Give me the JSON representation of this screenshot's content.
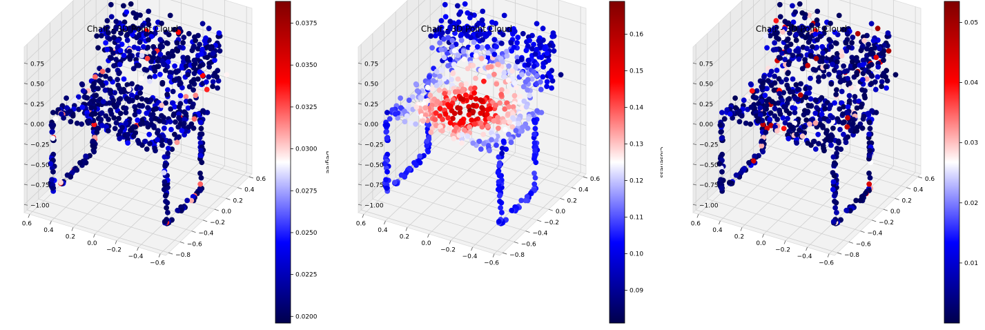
{
  "chart_data": [
    {
      "type": "scatter",
      "projection": "3d",
      "title": "Chair - 3D Point Cloud",
      "colormap": "seismic",
      "colorbar": {
        "label": "Degree",
        "range": [
          0.0196,
          0.0388
        ],
        "ticks": [
          "0.0200",
          "0.0225",
          "0.0250",
          "0.0275",
          "0.0300",
          "0.0325",
          "0.0350",
          "0.0375"
        ],
        "tick_values": [
          0.02,
          0.0225,
          0.025,
          0.0275,
          0.03,
          0.0325,
          0.035,
          0.0375
        ]
      },
      "xticks": [
        "−0.6",
        "−0.4",
        "−0.2",
        "0.0",
        "0.2",
        "0.4",
        "0.6"
      ],
      "yticks": [
        "−0.8",
        "−0.6",
        "−0.4",
        "−0.2",
        "0.0",
        "0.2",
        "0.4",
        "0.6"
      ],
      "zticks": [
        "−1.00",
        "−0.75",
        "−0.50",
        "−0.25",
        "0.00",
        "0.25",
        "0.50",
        "0.75"
      ],
      "xlim": [
        -0.65,
        0.65
      ],
      "ylim": [
        -0.85,
        0.65
      ],
      "zlim": [
        -1.1,
        0.95
      ],
      "grid": true,
      "edges_shown": true,
      "point_color_profile": "mostly-low"
    },
    {
      "type": "scatter",
      "projection": "3d",
      "title": "Chair - 3D Point Cloud",
      "colormap": "seismic",
      "colorbar": {
        "label": "Closeness",
        "range": [
          0.081,
          0.169
        ],
        "ticks": [
          "0.09",
          "0.10",
          "0.11",
          "0.12",
          "0.13",
          "0.14",
          "0.15",
          "0.16"
        ],
        "tick_values": [
          0.09,
          0.1,
          0.11,
          0.12,
          0.13,
          0.14,
          0.15,
          0.16
        ]
      },
      "xticks": [
        "−0.6",
        "−0.4",
        "−0.2",
        "0.0",
        "0.2",
        "0.4",
        "0.6"
      ],
      "yticks": [
        "−0.8",
        "−0.6",
        "−0.4",
        "−0.2",
        "0.0",
        "0.2",
        "0.4",
        "0.6"
      ],
      "zticks": [
        "−1.00",
        "−0.75",
        "−0.50",
        "−0.25",
        "0.00",
        "0.25",
        "0.50",
        "0.75"
      ],
      "xlim": [
        -0.65,
        0.65
      ],
      "ylim": [
        -0.85,
        0.65
      ],
      "zlim": [
        -1.1,
        0.95
      ],
      "grid": true,
      "edges_shown": true,
      "point_color_profile": "high-seat-center"
    },
    {
      "type": "scatter",
      "projection": "3d",
      "title": "Chair - 3D Point Cloud",
      "colormap": "seismic",
      "colorbar": {
        "label": "Betweenness",
        "range": [
          0.0,
          0.0535
        ],
        "ticks": [
          "0.01",
          "0.02",
          "0.03",
          "0.04",
          "0.05"
        ],
        "tick_values": [
          0.01,
          0.02,
          0.03,
          0.04,
          0.05
        ]
      },
      "xticks": [
        "−0.6",
        "−0.4",
        "−0.2",
        "0.0",
        "0.2",
        "0.4",
        "0.6"
      ],
      "yticks": [
        "−0.8",
        "−0.6",
        "−0.4",
        "−0.2",
        "0.0",
        "0.2",
        "0.4",
        "0.6"
      ],
      "zticks": [
        "−1.00",
        "−0.75",
        "−0.50",
        "−0.25",
        "0.00",
        "0.25",
        "0.50",
        "0.75"
      ],
      "xlim": [
        -0.65,
        0.65
      ],
      "ylim": [
        -0.85,
        0.65
      ],
      "zlim": [
        -1.1,
        0.95
      ],
      "grid": true,
      "edges_shown": true,
      "point_color_profile": "sparse-high"
    }
  ]
}
